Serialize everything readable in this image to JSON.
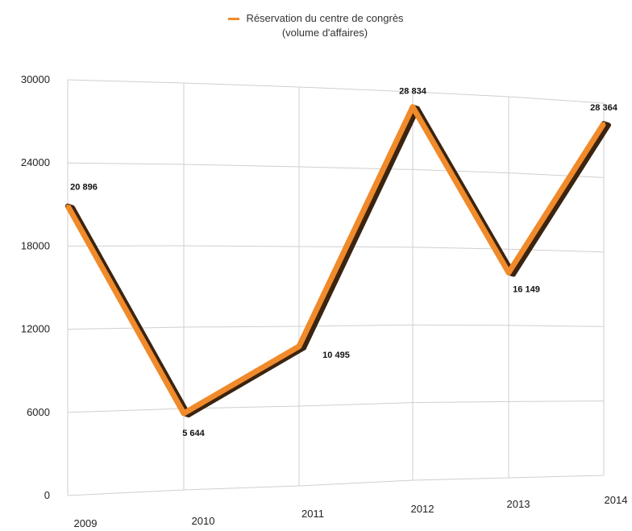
{
  "chart_data": {
    "type": "line",
    "title": "",
    "xlabel": "",
    "ylabel": "",
    "categories": [
      "2009",
      "2010",
      "2011",
      "2012",
      "2013",
      "2014"
    ],
    "series": [
      {
        "name": "Réservation du centre de congrès (volume d'affaires)",
        "values": [
          20896,
          5644,
          10495,
          28834,
          16149,
          28364
        ],
        "data_labels": [
          "20 896",
          "5 644",
          "10 495",
          "28 834",
          "16 149",
          "28 364"
        ]
      }
    ],
    "ylim": [
      0,
      30000
    ],
    "yticks": [
      "0",
      "6000",
      "12000",
      "18000",
      "24000",
      "30000"
    ],
    "grid": true,
    "legend": {
      "placement": "top-center",
      "line1": "Réservation du centre de congrès",
      "line2": "(volume d'affaires)"
    },
    "colors": {
      "line": "#f08a2a",
      "shadow": "#3b2410",
      "grid": "#cfcfcf"
    }
  }
}
